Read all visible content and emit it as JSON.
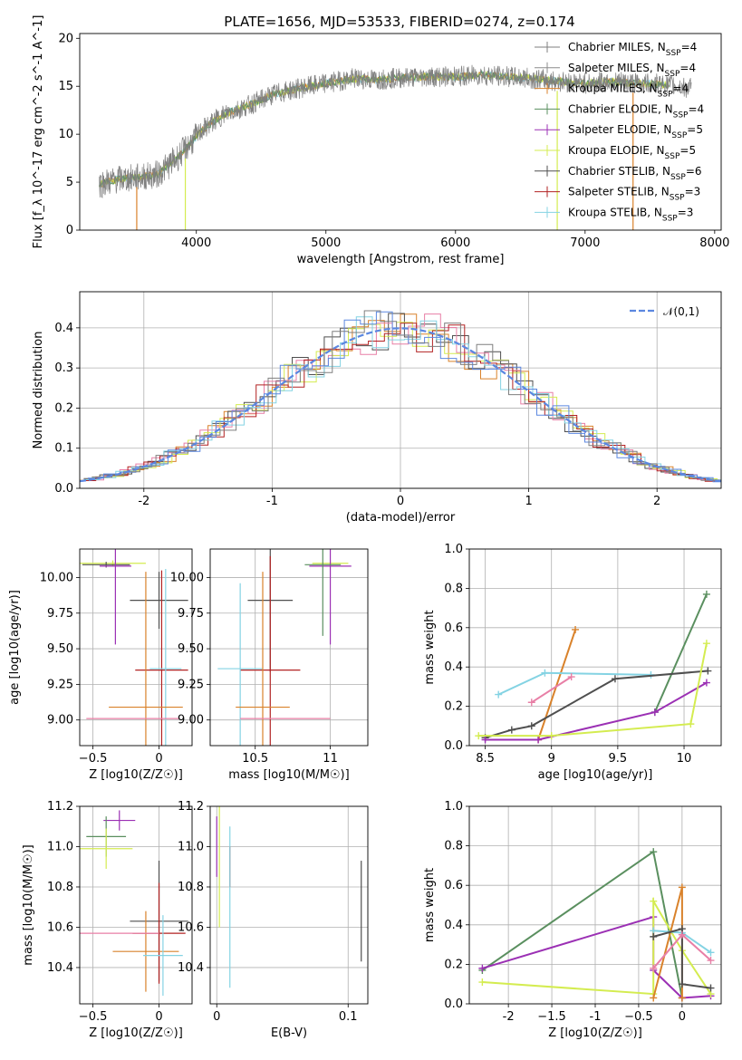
{
  "title": "PLATE=1656, MJD=53533, FIBERID=0274, z=0.174",
  "colors": {
    "chabrier_miles": "#7f7f7f",
    "salpeter_miles": "#8c8c8c",
    "kroupa_miles": "#d9822b",
    "chabrier_elodie": "#5a8f5f",
    "salpeter_elodie": "#9b30b4",
    "kroupa_elodie": "#d4ec50",
    "chabrier_stelib": "#4f4f4f",
    "salpeter_stelib": "#b22222",
    "kroupa_stelib": "#84d3e3",
    "normal": "#5b87e0",
    "pink": "#e87fa6"
  },
  "legend": [
    {
      "label": "Chabrier MILES, N",
      "sub": "SSP",
      "suffix": "=4",
      "color": "#7f7f7f"
    },
    {
      "label": "Salpeter MILES, N",
      "sub": "SSP",
      "suffix": "=4",
      "color": "#8c8c8c"
    },
    {
      "label": "Kroupa MILES, N",
      "sub": "SSP",
      "suffix": "=4",
      "color": "#d9822b"
    },
    {
      "label": "Chabrier ELODIE, N",
      "sub": "SSP",
      "suffix": "=4",
      "color": "#5a8f5f"
    },
    {
      "label": "Salpeter ELODIE, N",
      "sub": "SSP",
      "suffix": "=5",
      "color": "#9b30b4"
    },
    {
      "label": "Kroupa ELODIE, N",
      "sub": "SSP",
      "suffix": "=5",
      "color": "#d4ec50"
    },
    {
      "label": "Chabrier STELIB, N",
      "sub": "SSP",
      "suffix": "=6",
      "color": "#4f4f4f"
    },
    {
      "label": "Salpeter STELIB, N",
      "sub": "SSP",
      "suffix": "=3",
      "color": "#b22222"
    },
    {
      "label": "Kroupa STELIB, N",
      "sub": "SSP",
      "suffix": "=3",
      "color": "#84d3e3"
    }
  ],
  "chart_data": [
    {
      "id": "spectrum",
      "type": "line",
      "xlabel": "wavelength [Angstrom, rest frame]",
      "ylabel": "Flux [f_λ 10^-17 erg cm^-2 s^-1 A^-1]",
      "xlim": [
        3100,
        8050
      ],
      "ylim": [
        0,
        20.5
      ],
      "xticks": [
        4000,
        5000,
        6000,
        7000,
        8000
      ],
      "yticks": [
        0,
        5,
        10,
        15,
        20
      ],
      "x": [
        3250,
        3400,
        3550,
        3700,
        3850,
        3950,
        4050,
        4200,
        4400,
        4600,
        4800,
        5000,
        5200,
        5400,
        5600,
        5800,
        6000,
        6200,
        6400,
        6600,
        6800,
        7000,
        7200,
        7400,
        7600,
        7800
      ],
      "y": [
        4.8,
        5.3,
        5.5,
        5.8,
        7.5,
        9.0,
        10.5,
        12.0,
        13.0,
        14.2,
        14.8,
        15.3,
        15.8,
        15.7,
        15.9,
        16.0,
        16.0,
        16.2,
        16.0,
        15.8,
        15.5,
        15.3,
        15.5,
        15.3,
        15.2,
        14.8
      ]
    },
    {
      "id": "residual_hist",
      "type": "line",
      "xlabel": "(data-model)/error",
      "ylabel": "Normed distribution",
      "xlim": [
        -2.5,
        2.5
      ],
      "ylim": [
        0,
        0.49
      ],
      "xticks": [
        -2,
        -1,
        0,
        1,
        2
      ],
      "yticks": [
        0.0,
        0.1,
        0.2,
        0.3,
        0.4
      ],
      "legend": "𝒩(0,1)",
      "series_name": "𝒩(0,1)"
    },
    {
      "id": "age_vs_Z",
      "type": "scatter",
      "xlabel": "Z [log10(Z/Z☉)]",
      "ylabel": "age [log10(age/yr)]",
      "xlim": [
        -0.6,
        0.25
      ],
      "ylim": [
        8.82,
        10.2
      ],
      "xticks": [
        -0.5,
        0.0
      ],
      "yticks": [
        9.0,
        9.25,
        9.5,
        9.75,
        10.0
      ],
      "points": [
        {
          "x": -0.35,
          "y": 10.1,
          "xerr": 0.25,
          "yerr": 0.02,
          "color": "#d4ec50"
        },
        {
          "x": -0.4,
          "y": 10.09,
          "xerr": 0.18,
          "yerr": 0.02,
          "color": "#4f4f4f"
        },
        {
          "x": -0.33,
          "y": 10.08,
          "xerr": 0.12,
          "yerr": 0.55,
          "color": "#9b30b4"
        },
        {
          "x": 0.0,
          "y": 9.84,
          "xerr": 0.22,
          "yerr": 0.2,
          "color": "#4f4f4f"
        },
        {
          "x": 0.02,
          "y": 9.35,
          "xerr": 0.2,
          "yerr": 0.7,
          "color": "#b22222"
        },
        {
          "x": 0.05,
          "y": 9.36,
          "xerr": 0.12,
          "yerr": 0.7,
          "color": "#84d3e3"
        },
        {
          "x": -0.1,
          "y": 9.09,
          "xerr": 0.28,
          "yerr": 0.95,
          "color": "#d9822b"
        },
        {
          "x": -0.2,
          "y": 9.01,
          "xerr": 0.35,
          "yerr": 0.0,
          "color": "#e87fa6"
        }
      ]
    },
    {
      "id": "age_vs_mass",
      "type": "scatter",
      "xlabel": "mass [log10(M/M☉)]",
      "ylabel": "",
      "xlim": [
        10.2,
        11.25
      ],
      "ylim": [
        8.82,
        10.2
      ],
      "xticks": [
        10.5,
        11.0
      ],
      "yticks": [
        9.0,
        9.25,
        9.5,
        9.75,
        10.0
      ],
      "points": [
        {
          "x": 11.0,
          "y": 10.1,
          "xerr": 0.12,
          "yerr": 0.02,
          "color": "#d4ec50"
        },
        {
          "x": 11.0,
          "y": 10.08,
          "xerr": 0.14,
          "yerr": 0.55,
          "color": "#9b30b4"
        },
        {
          "x": 10.95,
          "y": 10.09,
          "xerr": 0.12,
          "yerr": 0.5,
          "color": "#5a8f5f"
        },
        {
          "x": 10.6,
          "y": 9.84,
          "xerr": 0.15,
          "yerr": 0.5,
          "color": "#4f4f4f"
        },
        {
          "x": 10.6,
          "y": 9.35,
          "xerr": 0.2,
          "yerr": 0.8,
          "color": "#b22222"
        },
        {
          "x": 10.4,
          "y": 9.36,
          "xerr": 0.15,
          "yerr": 0.6,
          "color": "#84d3e3"
        },
        {
          "x": 10.55,
          "y": 9.09,
          "xerr": 0.18,
          "yerr": 0.95,
          "color": "#d9822b"
        },
        {
          "x": 10.7,
          "y": 9.01,
          "xerr": 0.3,
          "yerr": 0.0,
          "color": "#e87fa6"
        }
      ]
    },
    {
      "id": "weight_vs_age",
      "type": "line",
      "xlabel": "age [log10(age/yr)]",
      "ylabel": "mass weight",
      "xlim": [
        8.38,
        10.28
      ],
      "ylim": [
        0,
        1.0
      ],
      "xticks": [
        8.5,
        9.0,
        9.5,
        10.0
      ],
      "yticks": [
        0.0,
        0.2,
        0.4,
        0.6,
        0.8,
        1.0
      ],
      "series": [
        {
          "color": "#d9822b",
          "x": [
            8.9,
            9.18
          ],
          "y": [
            0.03,
            0.59
          ]
        },
        {
          "color": "#5a8f5f",
          "x": [
            9.78,
            10.17
          ],
          "y": [
            0.17,
            0.77
          ]
        },
        {
          "color": "#84d3e3",
          "x": [
            8.6,
            8.95,
            9.75
          ],
          "y": [
            0.26,
            0.37,
            0.36
          ]
        },
        {
          "color": "#4f4f4f",
          "x": [
            8.5,
            8.7,
            8.85,
            9.48,
            10.18
          ],
          "y": [
            0.04,
            0.08,
            0.1,
            0.34,
            0.38
          ]
        },
        {
          "color": "#9b30b4",
          "x": [
            8.5,
            8.9,
            9.78,
            10.17
          ],
          "y": [
            0.03,
            0.03,
            0.17,
            0.32
          ]
        },
        {
          "color": "#d4ec50",
          "x": [
            8.45,
            9.0,
            10.05,
            10.17
          ],
          "y": [
            0.05,
            0.05,
            0.11,
            0.52
          ]
        },
        {
          "color": "#e87fa6",
          "x": [
            8.85,
            9.15
          ],
          "y": [
            0.22,
            0.35
          ]
        }
      ]
    },
    {
      "id": "mass_vs_Z",
      "type": "scatter",
      "xlabel": "Z [log10(Z/Z☉)]",
      "ylabel": "mass [log10(M/M☉)]",
      "xlim": [
        -0.6,
        0.25
      ],
      "ylim": [
        10.22,
        11.2
      ],
      "xticks": [
        -0.5,
        0.0
      ],
      "yticks": [
        10.4,
        10.6,
        10.8,
        11.0,
        11.2
      ],
      "points": [
        {
          "x": -0.3,
          "y": 11.13,
          "xerr": 0.12,
          "yerr": 0.05,
          "color": "#9b30b4"
        },
        {
          "x": -0.4,
          "y": 11.05,
          "xerr": 0.15,
          "yerr": 0.1,
          "color": "#5a8f5f"
        },
        {
          "x": -0.4,
          "y": 10.99,
          "xerr": 0.2,
          "yerr": 0.1,
          "color": "#d4ec50"
        },
        {
          "x": 0.0,
          "y": 10.63,
          "xerr": 0.22,
          "yerr": 0.3,
          "color": "#4f4f4f"
        },
        {
          "x": 0.0,
          "y": 10.57,
          "xerr": 0.2,
          "yerr": 0.25,
          "color": "#b22222"
        },
        {
          "x": -0.1,
          "y": 10.48,
          "xerr": 0.25,
          "yerr": 0.2,
          "color": "#d9822b"
        },
        {
          "x": -0.3,
          "y": 10.57,
          "xerr": 0.3,
          "yerr": 0.0,
          "color": "#e87fa6"
        },
        {
          "x": 0.03,
          "y": 10.46,
          "xerr": 0.15,
          "yerr": 0.2,
          "color": "#84d3e3"
        }
      ]
    },
    {
      "id": "mass_vs_ebv",
      "type": "scatter",
      "xlabel": "E(B-V)",
      "ylabel": "",
      "xlim": [
        -0.005,
        0.115
      ],
      "ylim": [
        10.22,
        11.2
      ],
      "xticks": [
        0.0,
        0.1
      ],
      "yticks": [
        10.4,
        10.6,
        10.8,
        11.0,
        11.2
      ],
      "points": [
        {
          "x": 0.0,
          "y": 11.0,
          "yerr": 0.15,
          "color": "#9b30b4"
        },
        {
          "x": 0.002,
          "y": 10.9,
          "yerr": 0.3,
          "color": "#d4ec50"
        },
        {
          "x": 0.01,
          "y": 10.9,
          "yerr": 0.1,
          "color": "#b22222"
        },
        {
          "x": 0.01,
          "y": 10.7,
          "yerr": 0.4,
          "color": "#84d3e3"
        },
        {
          "x": 0.11,
          "y": 10.68,
          "yerr": 0.25,
          "color": "#4f4f4f"
        }
      ]
    },
    {
      "id": "weight_vs_Z",
      "type": "line",
      "xlabel": "Z [log10(Z/Z☉)]",
      "ylabel": "mass weight",
      "xlim": [
        -2.45,
        0.45
      ],
      "ylim": [
        0,
        1.0
      ],
      "xticks": [
        -2.0,
        -1.5,
        -1.0,
        -0.5,
        0.0
      ],
      "yticks": [
        0.0,
        0.2,
        0.4,
        0.6,
        0.8,
        1.0
      ],
      "series": [
        {
          "color": "#5a8f5f",
          "x": [
            -2.3,
            -0.33,
            0.0
          ],
          "y": [
            0.17,
            0.77,
            0.03
          ]
        },
        {
          "color": "#9b30b4",
          "x": [
            -2.3,
            -0.33,
            -0.33,
            0.0,
            0.33
          ],
          "y": [
            0.18,
            0.44,
            0.17,
            0.03,
            0.04
          ]
        },
        {
          "color": "#d4ec50",
          "x": [
            -2.3,
            -0.33,
            -0.33,
            0.0,
            0.33
          ],
          "y": [
            0.11,
            0.05,
            0.52,
            0.27,
            0.05
          ]
        },
        {
          "color": "#d9822b",
          "x": [
            -0.33,
            0.0,
            0.0
          ],
          "y": [
            0.03,
            0.59,
            0.03
          ]
        },
        {
          "color": "#84d3e3",
          "x": [
            -0.33,
            0.0,
            0.33
          ],
          "y": [
            0.37,
            0.36,
            0.26
          ]
        },
        {
          "color": "#4f4f4f",
          "x": [
            -0.33,
            0.0,
            0.0,
            0.33
          ],
          "y": [
            0.34,
            0.38,
            0.1,
            0.08
          ]
        },
        {
          "color": "#e87fa6",
          "x": [
            -0.33,
            0.0,
            0.33
          ],
          "y": [
            0.18,
            0.35,
            0.22
          ]
        }
      ]
    }
  ]
}
